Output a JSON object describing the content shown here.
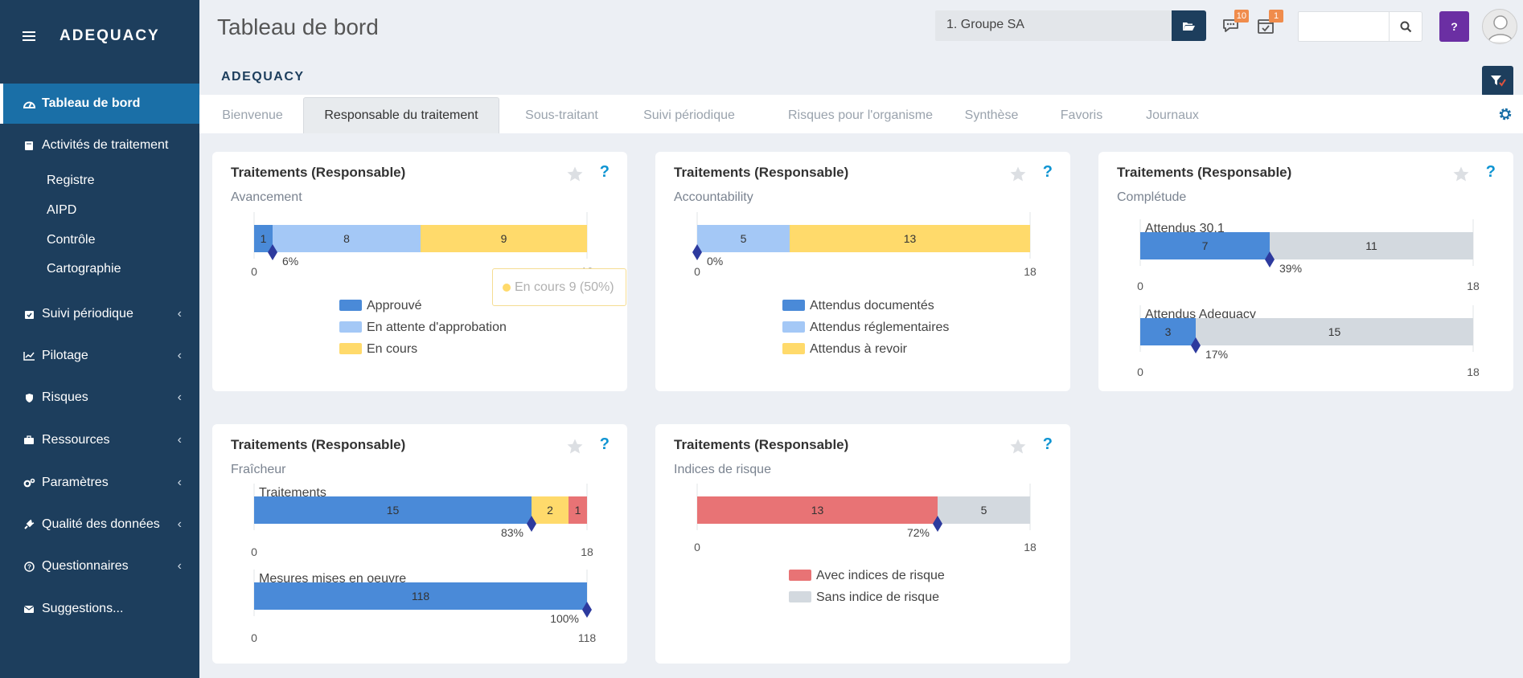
{
  "app": {
    "brand": "ADEQUACY",
    "page_title": "Tableau de bord",
    "brand_sub": "ADEQUACY"
  },
  "sidebar": {
    "items": [
      {
        "label": "Tableau de bord",
        "icon": "dashboard-icon",
        "active": true
      },
      {
        "label": "Activités de traitement",
        "icon": "book-icon"
      },
      {
        "label": "Suivi périodique",
        "icon": "calendar-check-icon",
        "chevron": true
      },
      {
        "label": "Pilotage",
        "icon": "line-chart-icon",
        "chevron": true
      },
      {
        "label": "Risques",
        "icon": "shield-icon",
        "chevron": true
      },
      {
        "label": "Ressources",
        "icon": "briefcase-icon",
        "chevron": true
      },
      {
        "label": "Paramètres",
        "icon": "cogs-icon",
        "chevron": true
      },
      {
        "label": "Qualité des données",
        "icon": "plug-icon",
        "chevron": true
      },
      {
        "label": "Questionnaires",
        "icon": "question-circle-icon",
        "chevron": true
      },
      {
        "label": "Suggestions...",
        "icon": "envelope-icon"
      }
    ],
    "subitems": [
      "Registre",
      "AIPD",
      "Contrôle",
      "Cartographie"
    ]
  },
  "header": {
    "group_select": "1. Groupe SA",
    "messages_badge": "10",
    "tasks_badge": "1",
    "search_placeholder": "",
    "help_label": "?"
  },
  "tabs": [
    {
      "label": "Bienvenue"
    },
    {
      "label": "Responsable du traitement",
      "active": true
    },
    {
      "label": "Sous-traitant"
    },
    {
      "label": "Suivi périodique"
    },
    {
      "label": "Risques pour l'organisme"
    },
    {
      "label": "Synthèse"
    },
    {
      "label": "Favoris"
    },
    {
      "label": "Journaux"
    }
  ],
  "colors": {
    "blue": "#4a8ad8",
    "lightblue": "#a4c8f6",
    "yellow": "#ffda6b",
    "red": "#e87375",
    "grey": "#d3d9df",
    "marker": "#2d3a9e"
  },
  "tooltip": {
    "text": "En cours 9 (50%)"
  },
  "cards": [
    {
      "title": "Traitements (Responsable)",
      "subtitle": "Avancement"
    },
    {
      "title": "Traitements (Responsable)",
      "subtitle": "Accountability"
    },
    {
      "title": "Traitements (Responsable)",
      "subtitle": "Complétude"
    },
    {
      "title": "Traitements (Responsable)",
      "subtitle": "Fraîcheur"
    },
    {
      "title": "Traitements (Responsable)",
      "subtitle": "Indices de risque"
    }
  ],
  "chart_data": [
    {
      "type": "bar",
      "orientation": "horizontal-stacked",
      "bars": [
        {
          "label": "",
          "max": 18,
          "segments": [
            {
              "name": "Approuvé",
              "value": 1,
              "color": "#4a8ad8"
            },
            {
              "name": "En attente d'approbation",
              "value": 8,
              "color": "#a4c8f6"
            },
            {
              "name": "En cours",
              "value": 9,
              "color": "#ffda6b"
            }
          ],
          "marker": {
            "value": 1,
            "label": "6%"
          }
        }
      ],
      "legend": [
        "Approuvé",
        "En attente d'approbation",
        "En cours"
      ],
      "xlim": [
        0,
        18
      ]
    },
    {
      "type": "bar",
      "orientation": "horizontal-stacked",
      "bars": [
        {
          "label": "",
          "max": 18,
          "segments": [
            {
              "name": "Attendus documentés",
              "value": 0,
              "color": "#4a8ad8"
            },
            {
              "name": "Attendus réglementaires",
              "value": 5,
              "color": "#a4c8f6"
            },
            {
              "name": "Attendus à revoir",
              "value": 13,
              "color": "#ffda6b"
            }
          ],
          "marker": {
            "value": 0,
            "label": "0%"
          }
        }
      ],
      "legend": [
        "Attendus documentés",
        "Attendus réglementaires",
        "Attendus à revoir"
      ],
      "xlim": [
        0,
        18
      ]
    },
    {
      "type": "bar",
      "orientation": "horizontal-stacked",
      "bars": [
        {
          "label": "Attendus 30.1",
          "max": 18,
          "segments": [
            {
              "name": "done",
              "value": 7,
              "color": "#4a8ad8"
            },
            {
              "name": "rest",
              "value": 11,
              "color": "#d3d9df"
            }
          ],
          "marker": {
            "value": 7,
            "label": "39%"
          }
        },
        {
          "label": "Attendus Adequacy",
          "max": 18,
          "segments": [
            {
              "name": "done",
              "value": 3,
              "color": "#4a8ad8"
            },
            {
              "name": "rest",
              "value": 15,
              "color": "#d3d9df"
            }
          ],
          "marker": {
            "value": 3,
            "label": "17%"
          }
        }
      ],
      "legend": [],
      "xlim": [
        0,
        18
      ]
    },
    {
      "type": "bar",
      "orientation": "horizontal-stacked",
      "bars": [
        {
          "label": "Traitements",
          "max": 18,
          "segments": [
            {
              "name": "a",
              "value": 15,
              "color": "#4a8ad8"
            },
            {
              "name": "b",
              "value": 2,
              "color": "#ffda6b"
            },
            {
              "name": "c",
              "value": 1,
              "color": "#e87375"
            }
          ],
          "marker": {
            "value": 15,
            "label": "83%",
            "label_side": "left"
          }
        },
        {
          "label": "Mesures mises en oeuvre",
          "max": 118,
          "segments": [
            {
              "name": "a",
              "value": 118,
              "color": "#4a8ad8"
            }
          ],
          "marker": {
            "value": 118,
            "label": "100%",
            "label_side": "left"
          }
        }
      ],
      "legend": [],
      "xlim": [
        0,
        18
      ]
    },
    {
      "type": "bar",
      "orientation": "horizontal-stacked",
      "bars": [
        {
          "label": "",
          "max": 18,
          "segments": [
            {
              "name": "Avec indices de risque",
              "value": 13,
              "color": "#e87375"
            },
            {
              "name": "Sans indice de risque",
              "value": 5,
              "color": "#d3d9df"
            }
          ],
          "marker": {
            "value": 13,
            "label": "72%",
            "label_side": "left"
          }
        }
      ],
      "legend": [
        "Avec indices de risque",
        "Sans indice de risque"
      ],
      "xlim": [
        0,
        18
      ]
    }
  ]
}
